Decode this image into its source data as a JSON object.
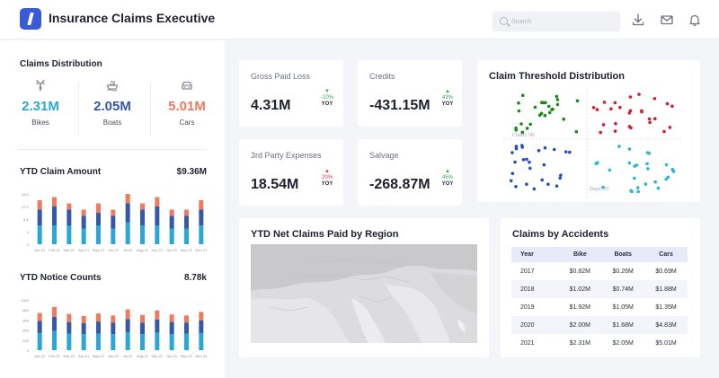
{
  "app": {
    "title": "Insurance Claims Executive"
  },
  "search": {
    "placeholder": "Search"
  },
  "toolbar": {
    "download_icon": "download-icon",
    "mail_icon": "mail-icon",
    "bell_icon": "bell-icon"
  },
  "claims_distribution": {
    "title": "Claims Distribution",
    "items": [
      {
        "value": "2.31M",
        "label": "Bikes",
        "icon": "bike-icon",
        "color": "#29a8d6"
      },
      {
        "value": "2.05M",
        "label": "Boats",
        "icon": "boat-icon",
        "color": "#3559a8"
      },
      {
        "value": "5.01M",
        "label": "Cars",
        "icon": "car-icon",
        "color": "#ef7a5e"
      }
    ]
  },
  "ytd_claim_amount": {
    "title": "YTD Claim Amount",
    "value": "$9.36M"
  },
  "ytd_notice_counts": {
    "title": "YTD Notice Counts",
    "value": "8.78k"
  },
  "kpis": [
    {
      "label": "Gross Paid Loss",
      "value": "4.31M",
      "change": "-10%",
      "direction": "down",
      "yoy": "YOY",
      "color": "#2fa84f"
    },
    {
      "label": "Credits",
      "value": "-431.15M",
      "change": "43%",
      "direction": "up",
      "yoy": "YOY",
      "color": "#2fa84f"
    },
    {
      "label": "3rd Party Expenses",
      "value": "18.54M",
      "change": "20%",
      "direction": "up",
      "yoy": "YOY",
      "color": "#d93636"
    },
    {
      "label": "Salvage",
      "value": "-268.87M",
      "change": "45%",
      "direction": "up",
      "yoy": "YOY",
      "color": "#2fa84f"
    }
  ],
  "threshold": {
    "title": "Claim Threshold Distribution",
    "label_claim": "Claim: 5K",
    "label_days": "Days: 15",
    "colors": [
      "#1a8a1a",
      "#d41c2a",
      "#2550b8",
      "#29b6d6"
    ]
  },
  "map": {
    "title": "YTD Net Claims Paid by Region"
  },
  "accidents": {
    "title": "Claims by Accidents",
    "headers": [
      "Year",
      "Bike",
      "Boats",
      "Cars"
    ],
    "rows": [
      [
        "2017",
        "$0.82M",
        "$0.26M",
        "$0.69M"
      ],
      [
        "2018",
        "$1.02M",
        "$0.74M",
        "$1.88M"
      ],
      [
        "2019",
        "$1.92M",
        "$1.05M",
        "$1.35M"
      ],
      [
        "2020",
        "$2.00M",
        "$1.68M",
        "$4.83M"
      ],
      [
        "2021",
        "$2.31M",
        "$2.05M",
        "$5.01M"
      ]
    ]
  },
  "chart_data": [
    {
      "type": "bar",
      "stacked": true,
      "title": "YTD Claim Amount",
      "categories": [
        "Jan-21",
        "Feb-21",
        "Mar-21",
        "Apr-21",
        "May-21",
        "Jun-21",
        "Jul-21",
        "Aug-21",
        "Sep-21",
        "Oct-21",
        "Nov-21",
        "Dec-21"
      ],
      "yticks": [
        "0",
        "4",
        "8 K",
        "12 K",
        "16 K"
      ],
      "ylim": [
        0,
        16
      ],
      "series": [
        {
          "values": [
            6,
            6,
            6,
            5,
            6,
            5,
            7,
            6,
            6,
            5,
            5,
            6
          ],
          "color": "#29a8d6"
        },
        {
          "values": [
            5,
            6,
            5,
            4,
            4,
            4,
            6,
            5,
            6,
            4,
            4,
            5
          ],
          "color": "#3559a8"
        },
        {
          "values": [
            3,
            3,
            2,
            2,
            3,
            2,
            3,
            2,
            3,
            2,
            2,
            3
          ],
          "color": "#ef7a5e"
        }
      ]
    },
    {
      "type": "bar",
      "stacked": true,
      "title": "YTD Notice Counts",
      "categories": [
        "Jan-21",
        "Feb-21",
        "Mar-21",
        "Apr-21",
        "May-21",
        "Jun-21",
        "Jul-21",
        "Aug-21",
        "Sep-21",
        "Oct-21",
        "Nov-21",
        "Dec-21"
      ],
      "yticks": [
        "0",
        "200",
        "400",
        "600",
        "800",
        "1000"
      ],
      "ylim": [
        0,
        1000
      ],
      "series": [
        {
          "values": [
            340,
            380,
            330,
            320,
            330,
            320,
            360,
            320,
            350,
            320,
            330,
            340
          ],
          "color": "#29a8d6"
        },
        {
          "values": [
            240,
            280,
            230,
            220,
            240,
            230,
            260,
            230,
            260,
            240,
            220,
            250
          ],
          "color": "#3559a8"
        },
        {
          "values": [
            160,
            200,
            160,
            140,
            160,
            140,
            190,
            150,
            180,
            150,
            140,
            170
          ],
          "color": "#ef7a5e"
        }
      ]
    }
  ]
}
